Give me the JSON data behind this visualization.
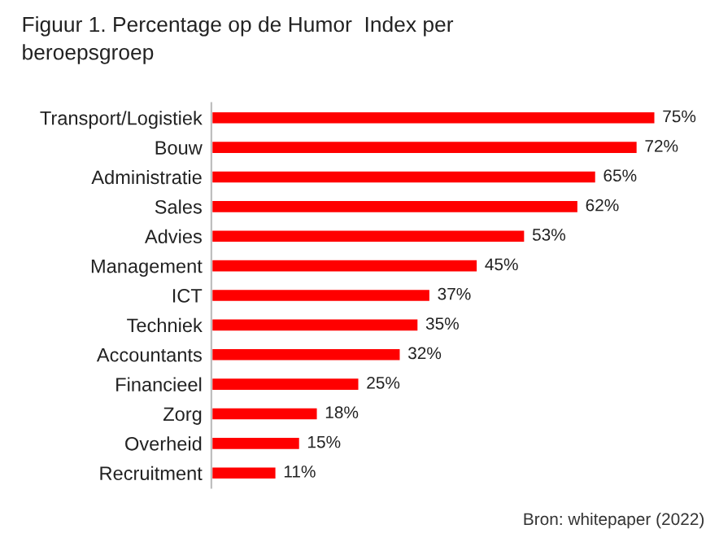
{
  "chart_data": {
    "type": "bar",
    "orientation": "horizontal",
    "title": "Figuur 1. Percentage op de Humor  Index per\nberoepsgroep",
    "categories": [
      "Transport/Logistiek",
      "Bouw",
      "Administratie",
      "Sales",
      "Advies",
      "Management",
      "ICT",
      "Techniek",
      "Accountants",
      "Financieel",
      "Zorg",
      "Overheid",
      "Recruitment"
    ],
    "values": [
      75,
      72,
      65,
      62,
      53,
      45,
      37,
      35,
      32,
      25,
      18,
      15,
      11
    ],
    "value_labels": [
      "75%",
      "72%",
      "65%",
      "62%",
      "53%",
      "45%",
      "37%",
      "35%",
      "32%",
      "25%",
      "18%",
      "15%",
      "11%"
    ],
    "color": "#ff0000",
    "annotations": [
      "Bron: whitepaper (2022)"
    ]
  }
}
